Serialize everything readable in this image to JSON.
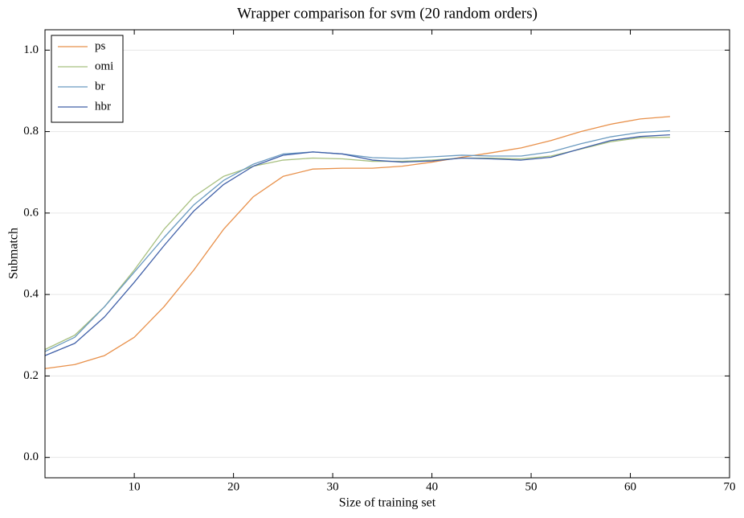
{
  "chart_data": {
    "type": "line",
    "title": "Wrapper comparison for svm (20 random orders)",
    "x_label": "Size of training set",
    "y_label": "Submatch",
    "x": [
      1,
      4,
      7,
      10,
      13,
      16,
      19,
      22,
      25,
      28,
      31,
      34,
      37,
      40,
      43,
      46,
      49,
      52,
      55,
      58,
      61,
      64
    ],
    "series": [
      {
        "name": "ps",
        "color": "#e8904a",
        "values": [
          0.218,
          0.228,
          0.25,
          0.295,
          0.37,
          0.46,
          0.56,
          0.64,
          0.69,
          0.708,
          0.71,
          0.71,
          0.715,
          0.725,
          0.737,
          0.748,
          0.76,
          0.778,
          0.8,
          0.818,
          0.831,
          0.837
        ]
      },
      {
        "name": "omi",
        "color": "#a8c080",
        "values": [
          0.265,
          0.3,
          0.37,
          0.46,
          0.56,
          0.64,
          0.69,
          0.715,
          0.73,
          0.735,
          0.733,
          0.727,
          0.727,
          0.73,
          0.735,
          0.735,
          0.733,
          0.74,
          0.757,
          0.775,
          0.785,
          0.786
        ]
      },
      {
        "name": "br",
        "color": "#6a9ac0",
        "values": [
          0.26,
          0.295,
          0.37,
          0.455,
          0.54,
          0.62,
          0.68,
          0.72,
          0.745,
          0.75,
          0.745,
          0.736,
          0.734,
          0.738,
          0.742,
          0.74,
          0.74,
          0.75,
          0.77,
          0.787,
          0.798,
          0.802
        ]
      },
      {
        "name": "hbr",
        "color": "#4060a8",
        "values": [
          0.25,
          0.28,
          0.345,
          0.43,
          0.52,
          0.605,
          0.67,
          0.715,
          0.742,
          0.75,
          0.745,
          0.73,
          0.725,
          0.728,
          0.735,
          0.733,
          0.73,
          0.737,
          0.758,
          0.778,
          0.788,
          0.792
        ]
      }
    ],
    "xlim": [
      1,
      70
    ],
    "xticks": [
      10,
      20,
      30,
      40,
      50,
      60,
      70
    ],
    "ylim": [
      -0.05,
      1.05
    ],
    "yticks": [
      {
        "value": 0,
        "label": "0.0"
      },
      0.2,
      0.4,
      0.6,
      0.8,
      {
        "value": 1,
        "label": "1.0"
      }
    ],
    "grid": true,
    "legend": "upper-left"
  }
}
